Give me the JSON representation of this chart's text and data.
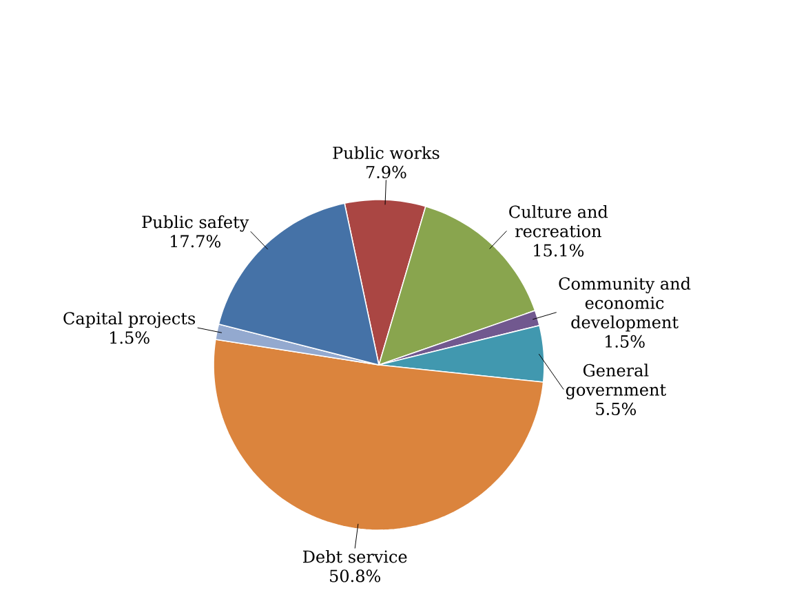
{
  "chart_data": {
    "type": "pie",
    "categories": [
      "Public works",
      "Culture and recreation",
      "Community and economic development",
      "General government",
      "Debt service",
      "Capital projects",
      "Public safety"
    ],
    "values": [
      7.9,
      15.1,
      1.5,
      5.5,
      50.8,
      1.5,
      17.7
    ],
    "value_labels": [
      "7.9%",
      "15.1%",
      "1.5%",
      "5.5%",
      "50.8%",
      "1.5%",
      "17.7%"
    ],
    "colors": [
      "#aa4643",
      "#89a54e",
      "#71588f",
      "#4198af",
      "#db843d",
      "#93a9cf",
      "#4572a7"
    ]
  }
}
